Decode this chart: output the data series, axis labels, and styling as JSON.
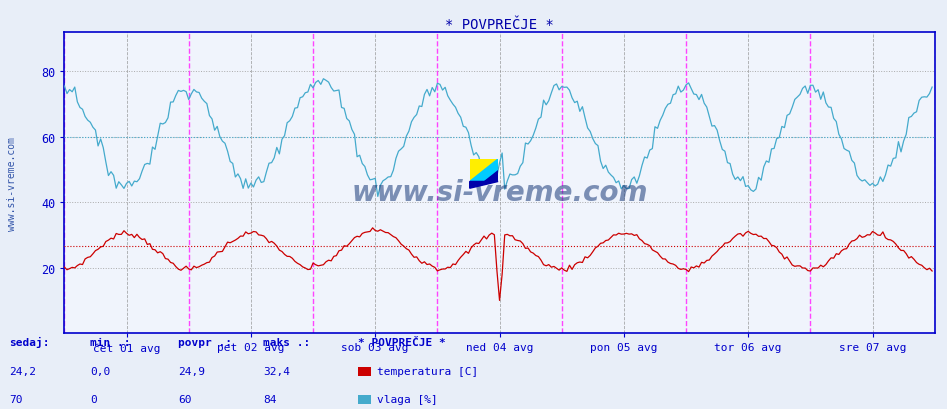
{
  "title": "* POVPREČJE *",
  "bg_color": "#e8eef8",
  "plot_bg_color": "#f0f4fc",
  "temp_color": "#cc0000",
  "humidity_color": "#44aacc",
  "avg_temp_color": "#cc0000",
  "avg_humidity_color": "#44aacc",
  "grid_color_h": "#aaaaaa",
  "grid_color_v_gray": "#888888",
  "vline_color_pink": "#ff44ff",
  "vline_color_gray": "#888888",
  "axis_color": "#0000cc",
  "text_color": "#0000cc",
  "title_color": "#0000aa",
  "ylim": [
    0,
    92
  ],
  "yticks": [
    20,
    40,
    60,
    80
  ],
  "avg_temp": 26.5,
  "avg_humidity": 60,
  "n_days": 7,
  "n_per_day": 48,
  "watermark": "www.si-vreme.com",
  "watermark_color": "#1a3a7a",
  "sidebar_text": "www.si-vreme.com",
  "sidebar_color": "#3355aa",
  "x_labels": [
    "čet 01 avg",
    "pet 02 avg",
    "sob 03 avg",
    "ned 04 avg",
    "pon 05 avg",
    "tor 06 avg",
    "sre 07 avg"
  ],
  "sedaj_label": "sedaj:",
  "min_label": "min .:",
  "povpr_label": "povpr .:",
  "maks_label": "maks .:",
  "station_label": "* POVPREČJE *",
  "temp_legend": "temperatura [C]",
  "hum_legend": "vlaga [%]",
  "sedaj_temp": "24,2",
  "min_temp": "0,0",
  "povpr_temp": "24,9",
  "maks_temp": "32,4",
  "sedaj_hum": "70",
  "min_hum": "0",
  "povpr_hum": "60",
  "maks_hum": "84"
}
